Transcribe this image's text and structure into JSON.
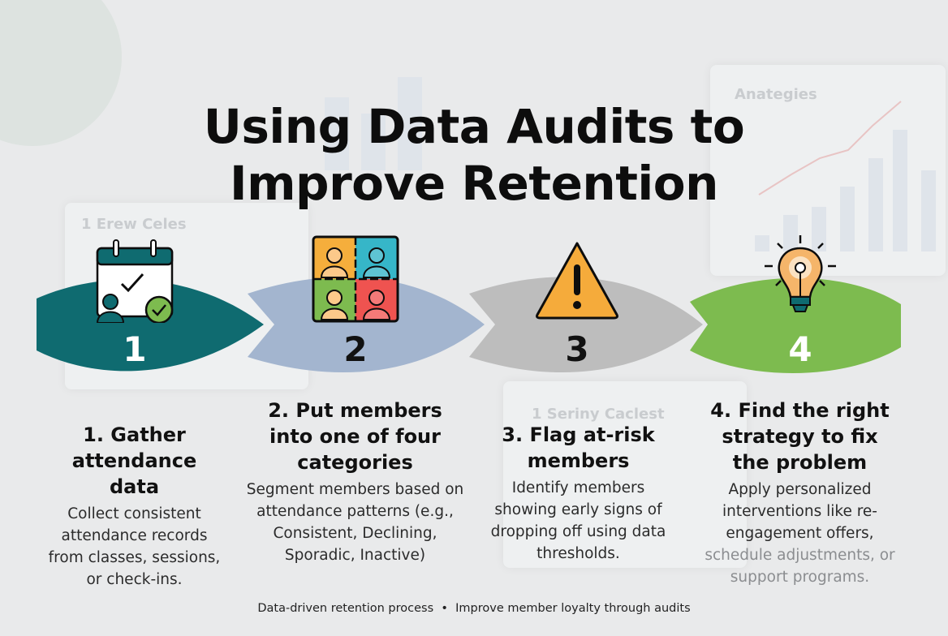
{
  "title": {
    "line1": "Using Data Audits to",
    "line2": "Improve Retention"
  },
  "background_labels": [
    "Anategies",
    "1 Erew Celes",
    "1 Seriny Caclest"
  ],
  "steps": [
    {
      "number": "1",
      "icon": "calendar-check-icon",
      "color": "#0f6b70",
      "number_color": "#ffffff",
      "heading": "1. Gather attendance data",
      "body": "Collect consistent attendance records from classes, sessions, or check-ins."
    },
    {
      "number": "2",
      "icon": "member-groups-icon",
      "color": "#a3b5cf",
      "number_color": "#111111",
      "heading": "2. Put members into one of four categories",
      "body": "Segment members based on attendance patterns (e.g., Consistent, Declining, Sporadic, Inactive)"
    },
    {
      "number": "3",
      "icon": "warning-icon",
      "color": "#bdbdbd",
      "number_color": "#111111",
      "heading": "3. Flag at-risk members",
      "body": "Identify members showing early signs of dropping off using data thresholds."
    },
    {
      "number": "4",
      "icon": "lightbulb-icon",
      "color": "#7dbb4f",
      "number_color": "#ffffff",
      "heading": "4. Find the right strategy to fix the problem",
      "body": "Apply personalized interventions like re-engagement offers,",
      "body_faded": "schedule adjustments, or support programs."
    }
  ],
  "footer": "Data-driven retention process  •  Improve member loyalty through audits"
}
